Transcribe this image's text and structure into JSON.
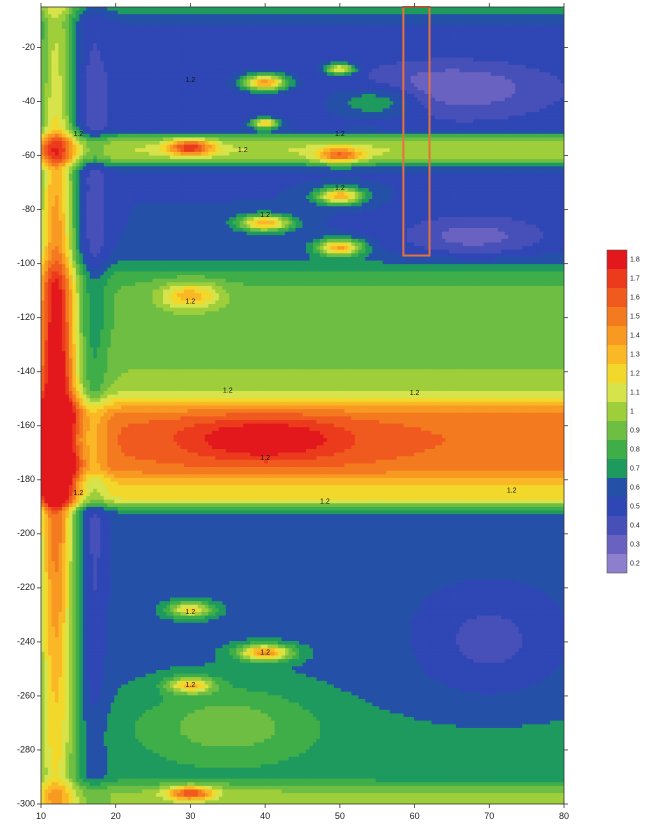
{
  "chart_data": {
    "type": "heatmap",
    "title": "",
    "xlabel": "",
    "ylabel": "",
    "xlim": [
      10,
      80
    ],
    "ylim": [
      -300,
      -5
    ],
    "x_ticks": [
      "10",
      "20",
      "30",
      "40",
      "50",
      "60",
      "70",
      "80"
    ],
    "y_ticks": [
      "-20",
      "-40",
      "-60",
      "-80",
      "-100",
      "-120",
      "-140",
      "-160",
      "-180",
      "-200",
      "-220",
      "-240",
      "-260",
      "-280",
      "-300"
    ],
    "colorbar": {
      "placement": "right",
      "levels": [
        "1.8",
        "1.7",
        "1.6",
        "1.5",
        "1.4",
        "1.3",
        "1.2",
        "1.1",
        "1",
        "0.9",
        "0.8",
        "0.7",
        "0.6",
        "0.5",
        "0.4",
        "0.3",
        "0.2"
      ],
      "colors": [
        "#e3181c",
        "#eb3b1c",
        "#f05a1e",
        "#f47a20",
        "#f89a22",
        "#fbb826",
        "#f2d82b",
        "#d6e34a",
        "#9ecf3b",
        "#6fbe44",
        "#3fae49",
        "#1e9a5e",
        "#2450a8",
        "#2f47b5",
        "#4650b8",
        "#6a62c0",
        "#8e7fcc"
      ]
    },
    "contour_labels": [
      {
        "x": 30,
        "y": -32,
        "text": "1.2"
      },
      {
        "x": 15,
        "y": -52,
        "text": "1.2"
      },
      {
        "x": 50,
        "y": -52,
        "text": "1.2"
      },
      {
        "x": 37,
        "y": -58,
        "text": "1.2"
      },
      {
        "x": 50,
        "y": -72,
        "text": "1.2"
      },
      {
        "x": 40,
        "y": -82,
        "text": "1.2"
      },
      {
        "x": 30,
        "y": -114,
        "text": "1.2"
      },
      {
        "x": 35,
        "y": -147,
        "text": "1.2"
      },
      {
        "x": 60,
        "y": -148,
        "text": "1.2"
      },
      {
        "x": 40,
        "y": -172,
        "text": "1.2"
      },
      {
        "x": 15,
        "y": -185,
        "text": "1.2"
      },
      {
        "x": 48,
        "y": -188,
        "text": "1.2"
      },
      {
        "x": 73,
        "y": -184,
        "text": "1.2"
      },
      {
        "x": 30,
        "y": -229,
        "text": "1.2"
      },
      {
        "x": 40,
        "y": -244,
        "text": "1.2"
      },
      {
        "x": 30,
        "y": -256,
        "text": "1.2"
      }
    ],
    "highlight_box": {
      "x": [
        58.5,
        62
      ],
      "y": [
        -5,
        -97
      ],
      "color": "#e8703a"
    },
    "fields": {
      "base": 0.85,
      "bands": [
        {
          "y": -5,
          "w": 3,
          "v": 0.75
        },
        {
          "y": -15,
          "w": 10,
          "v": 0.55
        },
        {
          "y": -40,
          "w": 15,
          "v": 0.5
        },
        {
          "y": -57,
          "w": 4,
          "v": 1.2
        },
        {
          "y": -85,
          "w": 14,
          "v": 0.55
        },
        {
          "y": -118,
          "w": 14,
          "v": 0.88
        },
        {
          "y": -140,
          "w": 10,
          "v": 0.95
        },
        {
          "y": -165,
          "w": 12,
          "v": 1.55
        },
        {
          "y": -184,
          "w": 4,
          "v": 1.25
        },
        {
          "y": -215,
          "w": 20,
          "v": 0.6
        },
        {
          "y": -250,
          "w": 18,
          "v": 0.62
        },
        {
          "y": -280,
          "w": 15,
          "v": 0.68
        },
        {
          "y": -297,
          "w": 4,
          "v": 1.05
        }
      ],
      "blobs": [
        {
          "x": 12,
          "y": -150,
          "rx": 2.5,
          "ry": 160,
          "a": 1.0
        },
        {
          "x": 17,
          "y": -150,
          "rx": 2.0,
          "ry": 160,
          "a": -0.2
        },
        {
          "x": 40,
          "y": -165,
          "rx": 11,
          "ry": 8,
          "a": 0.35
        },
        {
          "x": 13,
          "y": -165,
          "rx": 3,
          "ry": 7,
          "a": -0.3
        },
        {
          "x": 30,
          "y": -57,
          "rx": 3,
          "ry": 3,
          "a": 0.7
        },
        {
          "x": 40,
          "y": -33,
          "rx": 3,
          "ry": 3,
          "a": 0.9
        },
        {
          "x": 50,
          "y": -28,
          "rx": 2,
          "ry": 2,
          "a": 0.7
        },
        {
          "x": 40,
          "y": -48,
          "rx": 1.8,
          "ry": 1.8,
          "a": 0.8
        },
        {
          "x": 50,
          "y": -60,
          "rx": 3,
          "ry": 3,
          "a": 0.55
        },
        {
          "x": 50,
          "y": -75,
          "rx": 3,
          "ry": 3,
          "a": 0.8
        },
        {
          "x": 40,
          "y": -85,
          "rx": 3.5,
          "ry": 3,
          "a": 0.8
        },
        {
          "x": 50,
          "y": -94,
          "rx": 3,
          "ry": 3,
          "a": 0.8
        },
        {
          "x": 30,
          "y": -112,
          "rx": 4,
          "ry": 5,
          "a": 0.45
        },
        {
          "x": 55,
          "y": -40,
          "rx": 6,
          "ry": 6,
          "a": 0.3
        },
        {
          "x": 30,
          "y": -228,
          "rx": 3,
          "ry": 3,
          "a": 0.6
        },
        {
          "x": 40,
          "y": -244,
          "rx": 3.5,
          "ry": 3,
          "a": 0.8
        },
        {
          "x": 30,
          "y": -256,
          "rx": 3,
          "ry": 3,
          "a": 0.6
        },
        {
          "x": 30,
          "y": -296,
          "rx": 3,
          "ry": 2.5,
          "a": 0.7
        },
        {
          "x": 35,
          "y": -270,
          "rx": 12,
          "ry": 15,
          "a": 0.25
        },
        {
          "x": 65,
          "y": -35,
          "rx": 12,
          "ry": 10,
          "a": -0.25
        },
        {
          "x": 68,
          "y": -90,
          "rx": 10,
          "ry": 8,
          "a": -0.25
        },
        {
          "x": 70,
          "y": -240,
          "rx": 10,
          "ry": 20,
          "a": -0.2
        }
      ]
    }
  }
}
